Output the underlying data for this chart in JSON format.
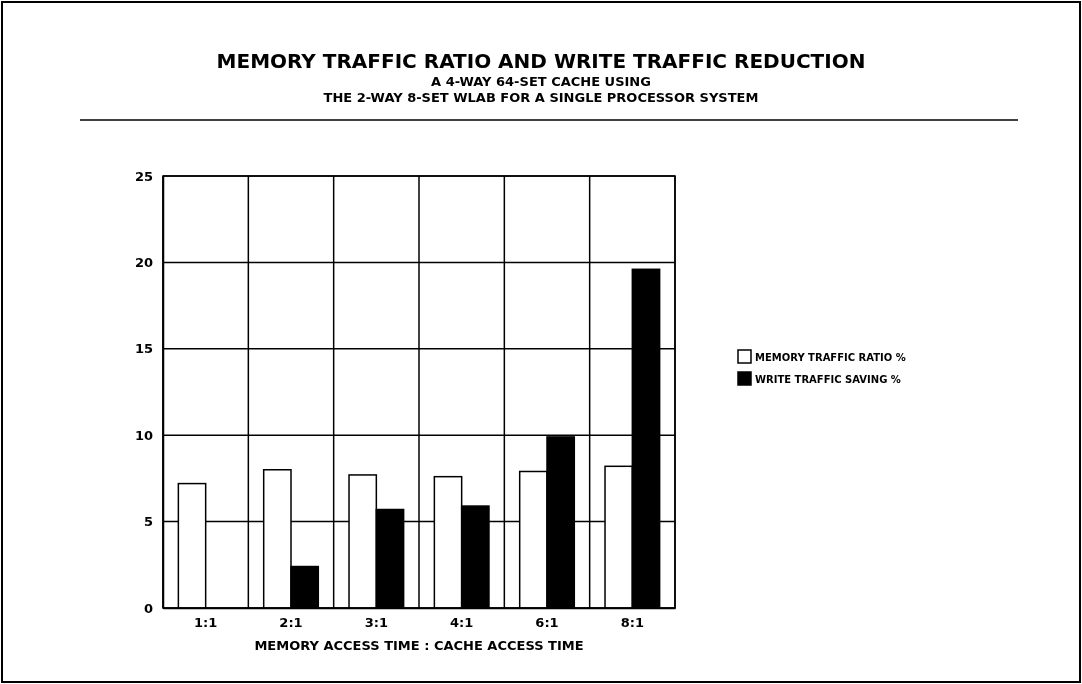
{
  "chart_data": {
    "type": "bar",
    "title": "MEMORY TRAFFIC RATIO AND WRITE TRAFFIC REDUCTION",
    "subtitle": "A 4-WAY 64-SET CACHE USING\nTHE 2-WAY 8-SET WLAB FOR A SINGLE PROCESSOR SYSTEM",
    "xlabel": "MEMORY ACCESS TIME : CACHE ACCESS TIME",
    "categories": [
      "1:1",
      "2:1",
      "3:1",
      "4:1",
      "6:1",
      "8:1"
    ],
    "series": [
      {
        "name": "MEMORY TRAFFIC RATIO %",
        "color": "#ffffff",
        "values": [
          7.2,
          8.0,
          7.7,
          7.6,
          7.9,
          8.2
        ]
      },
      {
        "name": "WRITE TRAFFIC SAVING %",
        "color": "#000000",
        "values": [
          0,
          2.4,
          5.7,
          5.9,
          9.9,
          19.6
        ]
      }
    ],
    "ylim": [
      0,
      25
    ],
    "yticks": [
      0,
      5,
      10,
      15,
      20,
      25
    ],
    "grid": true,
    "legend": "right"
  }
}
